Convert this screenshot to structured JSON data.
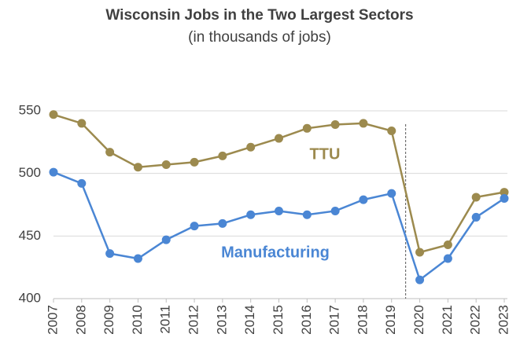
{
  "chart_data": {
    "type": "line",
    "title": "Wisconsin Jobs in the Two Largest Sectors",
    "subtitle": "(in thousands of jobs)",
    "categories": [
      "2007",
      "2008",
      "2009",
      "2010",
      "2011",
      "2012",
      "2013",
      "2014",
      "2015",
      "2016",
      "2017",
      "2018",
      "2019",
      "2020",
      "2021",
      "2022",
      "2023"
    ],
    "series": [
      {
        "name": "TTU",
        "color": "#9c8a4e",
        "values": [
          547,
          540,
          517,
          505,
          507,
          509,
          514,
          521,
          528,
          536,
          539,
          540,
          534,
          437,
          443,
          481,
          485
        ]
      },
      {
        "name": "Manufacturing",
        "color": "#4a86d4",
        "values": [
          501,
          492,
          436,
          432,
          447,
          458,
          460,
          467,
          470,
          467,
          470,
          479,
          484,
          415,
          432,
          465,
          480
        ]
      }
    ],
    "ylim": [
      400,
      550
    ],
    "yticks": [
      400,
      450,
      500,
      550
    ],
    "grid": true
  }
}
